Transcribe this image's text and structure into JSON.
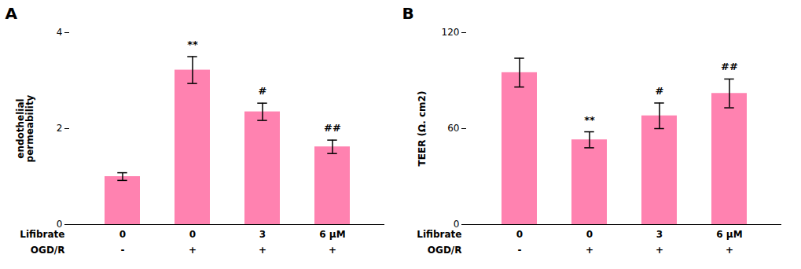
{
  "chart_data": [
    {
      "type": "bar",
      "title": "A",
      "categories": [
        "0",
        "0",
        "3",
        "6 μM"
      ],
      "categories_row2": [
        "-",
        "+",
        "+",
        "+"
      ],
      "xlabel": "Lifibrate",
      "xlabel_row2": "OGD/R",
      "ylabel": "endothelial\npermeability",
      "values": [
        1.0,
        3.22,
        2.35,
        1.62
      ],
      "errors": [
        0.08,
        0.28,
        0.18,
        0.14
      ],
      "annotations": [
        null,
        "**",
        "#",
        "##"
      ],
      "color": "#FF82B0",
      "ylim": [
        0,
        4
      ],
      "yticks": [
        0,
        2,
        4
      ],
      "grid": false
    },
    {
      "type": "bar",
      "title": "B",
      "categories": [
        "0",
        "0",
        "3",
        "6 μM"
      ],
      "categories_row2": [
        "-",
        "+",
        "+",
        "+"
      ],
      "xlabel": "Lifibrate",
      "xlabel_row2": "OGD/R",
      "ylabel": "TEER (Ω. cm2)",
      "values": [
        95.0,
        53.0,
        68.0,
        82.0
      ],
      "errors": [
        9.0,
        5.0,
        8.0,
        9.0
      ],
      "annotations": [
        null,
        "**",
        "#",
        "##"
      ],
      "color": "#FF82B0",
      "ylim": [
        0,
        120
      ],
      "yticks": [
        0,
        60,
        120
      ],
      "grid": false
    }
  ]
}
